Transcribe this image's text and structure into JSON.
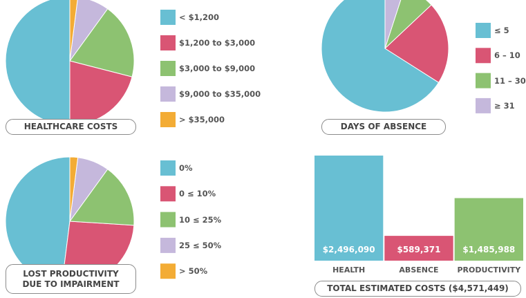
{
  "chart_data": [
    {
      "type": "pie",
      "title": "HEALTHCARE COSTS",
      "categories": [
        "< $1,200",
        "$1,200 to $3,000",
        "$3,000 to $9,000",
        "$9,000 to $35,000",
        "> $35,000"
      ],
      "values": [
        50,
        21,
        19,
        8,
        2
      ],
      "colors": [
        "#68bfd3",
        "#d95574",
        "#8dc271",
        "#c5b8dc",
        "#f3ac35"
      ]
    },
    {
      "type": "pie",
      "title": "DAYS OF ABSENCE",
      "categories": [
        "≤ 5",
        "6 – 10",
        "11 – 30",
        "≥ 31"
      ],
      "values": [
        66,
        21,
        8,
        5
      ],
      "colors": [
        "#68bfd3",
        "#d95574",
        "#8dc271",
        "#c5b8dc"
      ]
    },
    {
      "type": "pie",
      "title": "LOST PRODUCTIVITY\nDUE TO IMPAIRMENT",
      "categories": [
        "0%",
        "0 ≤ 10%",
        "10 ≤ 25%",
        "25 ≤ 50%",
        "> 50%"
      ],
      "values": [
        48,
        26,
        16,
        8,
        2
      ],
      "colors": [
        "#68bfd3",
        "#d95574",
        "#8dc271",
        "#c5b8dc",
        "#f3ac35"
      ]
    },
    {
      "type": "bar",
      "title": "TOTAL ESTIMATED COSTS ($4,571,449)",
      "categories": [
        "HEALTH",
        "ABSENCE",
        "PRODUCTIVITY"
      ],
      "values": [
        2496090,
        589371,
        1485988
      ],
      "value_labels": [
        "$2,496,090",
        "$589,371",
        "$1,485,988"
      ],
      "colors": [
        "#68bfd3",
        "#d95574",
        "#8dc271"
      ]
    }
  ]
}
